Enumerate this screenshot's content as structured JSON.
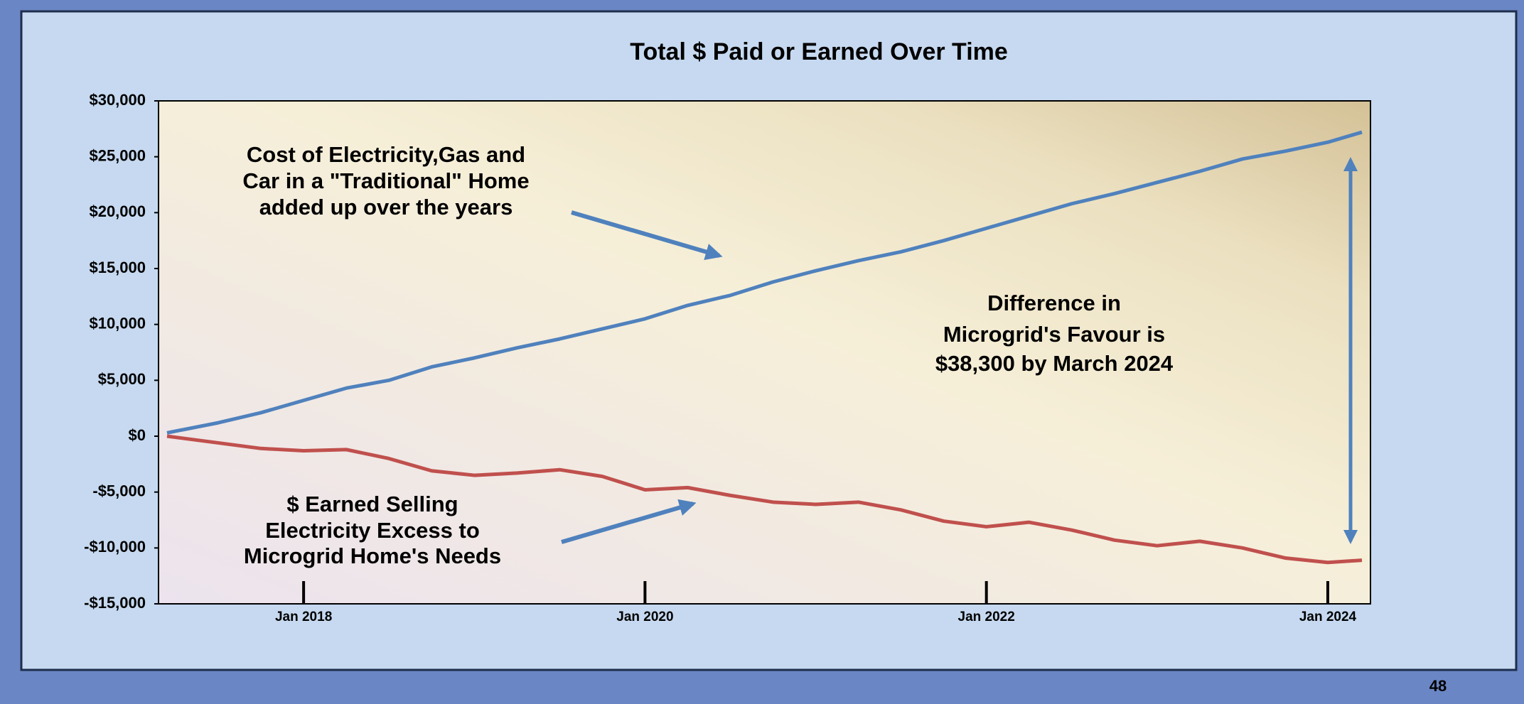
{
  "chart_data": {
    "type": "line",
    "title": "Total $ Paid or Earned Over Time",
    "x": [
      2017.2,
      2017.5,
      2017.75,
      2018,
      2018.25,
      2018.5,
      2018.75,
      2019,
      2019.25,
      2019.5,
      2019.75,
      2020,
      2020.25,
      2020.5,
      2020.75,
      2021,
      2021.25,
      2021.5,
      2021.75,
      2022,
      2022.25,
      2022.5,
      2022.75,
      2023,
      2023.25,
      2023.5,
      2023.75,
      2024,
      2024.2
    ],
    "series": [
      {
        "color": "#4f81bd",
        "values": [
          300,
          1200,
          2100,
          3200,
          4300,
          5000,
          6200,
          7000,
          7900,
          8700,
          9600,
          10500,
          11700,
          12600,
          13800,
          14800,
          15700,
          16500,
          17500,
          18600,
          19700,
          20800,
          21700,
          22700,
          23700,
          24800,
          25500,
          26300,
          27200
        ]
      },
      {
        "color": "#c0504d",
        "values": [
          0,
          -600,
          -1100,
          -1300,
          -1200,
          -2000,
          -3100,
          -3500,
          -3300,
          -3000,
          -3600,
          -4800,
          -4600,
          -5300,
          -5900,
          -6100,
          -5900,
          -6600,
          -7600,
          -8100,
          -7700,
          -8400,
          -9300,
          -9800,
          -9400,
          -10000,
          -10900,
          -11300,
          -11100
        ]
      }
    ],
    "xlim": [
      2017.15,
      2024.25
    ],
    "xticks": [
      {
        "value": 2018,
        "label": "Jan 2018"
      },
      {
        "value": 2020,
        "label": "Jan 2020"
      },
      {
        "value": 2022,
        "label": "Jan 2022"
      },
      {
        "value": 2024,
        "label": "Jan 2024"
      }
    ],
    "ylim": [
      -15000,
      30000
    ],
    "yticks": [
      {
        "value": -15000,
        "label": "-$15,000"
      },
      {
        "value": -10000,
        "label": "-$10,000"
      },
      {
        "value": -5000,
        "label": "-$5,000"
      },
      {
        "value": 0,
        "label": "$0"
      },
      {
        "value": 5000,
        "label": "$5,000"
      },
      {
        "value": 10000,
        "label": "$10,000"
      },
      {
        "value": 15000,
        "label": "$15,000"
      },
      {
        "value": 20000,
        "label": "$20,000"
      },
      {
        "value": 25000,
        "label": "$25,000"
      },
      {
        "value": 30000,
        "label": "$30,000"
      }
    ],
    "annotations": [
      [
        "Cost of Electricity,Gas and",
        "Car in a \"Traditional\" Home",
        "added up over the years"
      ],
      [
        "Difference in",
        "Microgrid's  Favour is",
        "$38,300 by March 2024"
      ],
      [
        "$ Earned Selling",
        "Electricity Excess to",
        "Microgrid Home's Needs"
      ]
    ]
  },
  "page_number": "48"
}
